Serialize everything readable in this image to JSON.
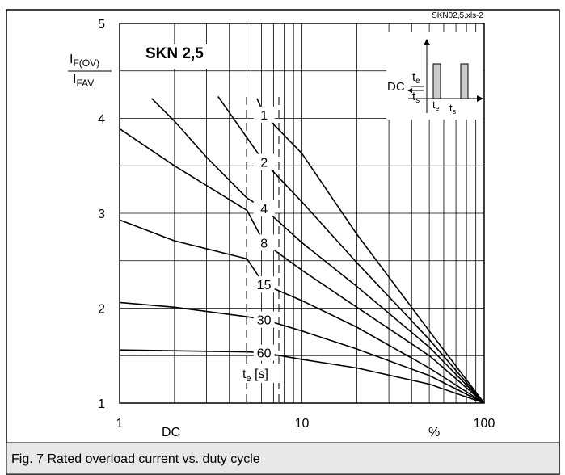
{
  "chart_data": {
    "type": "line",
    "file_label": "SKN02,5.xls-2",
    "title": "SKN 2,5",
    "y_label": {
      "numerator": {
        "main": "I",
        "sub": "F(OV)"
      },
      "denominator": {
        "main": "I",
        "sub": "FAV"
      }
    },
    "x_label": "DC",
    "x_unit": "%",
    "legend_title": {
      "main": "t",
      "sub": "e",
      "rest": " [s]"
    },
    "inset": {
      "te": {
        "main": "t",
        "sub": "e"
      },
      "ts": {
        "main": "t",
        "sub": "s"
      },
      "dc": "DC",
      "te2": {
        "main": "t",
        "sub": "e"
      },
      "ts2": {
        "main": "t",
        "sub": "s"
      }
    },
    "caption": "Fig. 7 Rated overload current vs. duty cycle",
    "x_log": true,
    "grid": true,
    "color": "#000000",
    "xlim": [
      1,
      100
    ],
    "ylim": [
      1,
      5
    ],
    "xticks": [
      1,
      10,
      100
    ],
    "yticks": [
      1,
      2,
      3,
      4,
      5
    ],
    "series": [
      {
        "name": "1",
        "x": [
          5.67,
          6.2,
          10,
          20,
          50,
          100
        ],
        "values": [
          4.21,
          4.04,
          3.63,
          2.78,
          1.76,
          1
        ]
      },
      {
        "name": "2",
        "x": [
          3.47,
          6.2,
          10,
          20,
          50,
          100
        ],
        "values": [
          4.23,
          3.54,
          3.12,
          2.48,
          1.67,
          1
        ]
      },
      {
        "name": "4",
        "x": [
          1.5,
          2,
          3,
          5,
          6.2,
          10,
          20,
          50,
          100
        ],
        "values": [
          4.21,
          3.97,
          3.59,
          3.16,
          3.05,
          2.69,
          2.23,
          1.59,
          1
        ]
      },
      {
        "name": "8",
        "x": [
          1,
          2,
          5,
          6.2,
          10,
          20,
          50,
          100
        ],
        "values": [
          3.89,
          3.5,
          3.03,
          2.69,
          2.4,
          2.01,
          1.5,
          1
        ]
      },
      {
        "name": "15",
        "x": [
          1,
          2,
          5,
          6.2,
          10,
          20,
          50,
          100
        ],
        "values": [
          2.93,
          2.71,
          2.52,
          2.25,
          2.08,
          1.8,
          1.37,
          1
        ]
      },
      {
        "name": "30",
        "x": [
          1,
          2,
          5,
          6.2,
          10,
          20,
          50,
          100
        ],
        "values": [
          2.06,
          2.01,
          1.91,
          1.88,
          1.76,
          1.57,
          1.29,
          1
        ]
      },
      {
        "name": "60",
        "x": [
          1,
          5,
          6.2,
          10,
          20,
          50,
          100
        ],
        "values": [
          1.56,
          1.54,
          1.53,
          1.46,
          1.37,
          1.2,
          1
        ]
      }
    ]
  }
}
